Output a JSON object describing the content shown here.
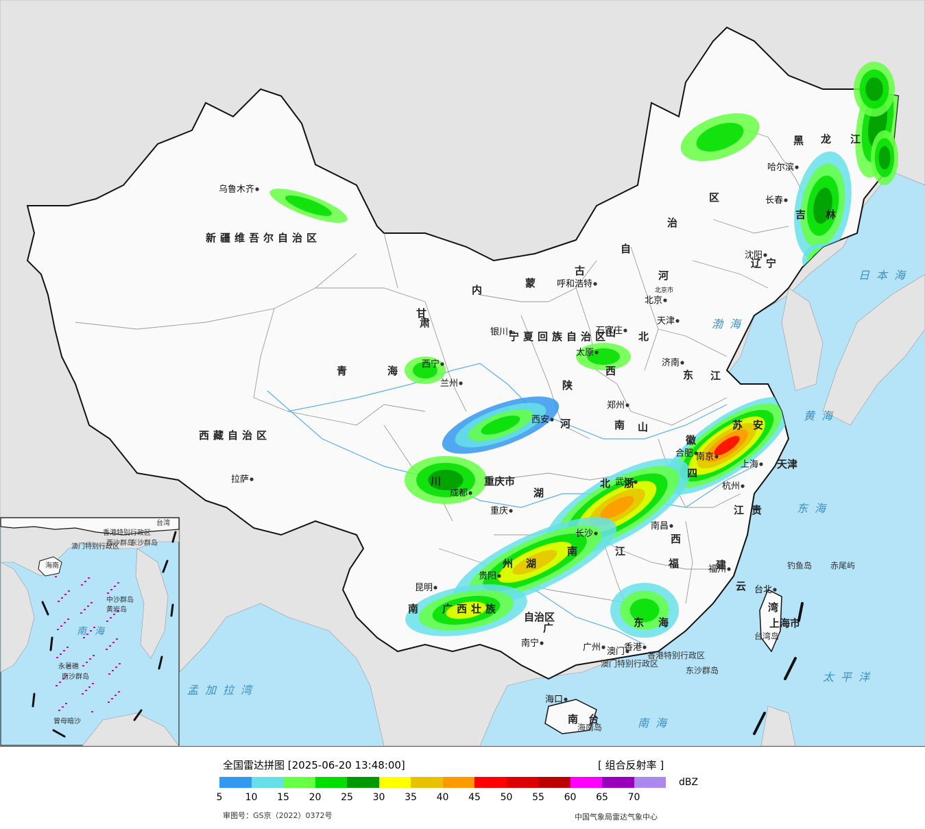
{
  "map": {
    "colors": {
      "sea": "#b5e3f8",
      "foreign_land": "#e4e4e4",
      "china_land": "#fafafa",
      "border": "#111111",
      "province_line": "#9a9a9a",
      "river": "#5aaef0"
    },
    "provinces": [
      {
        "name": "新疆维吾尔自治区"
      },
      {
        "name": "西藏自治区"
      },
      {
        "name": "青"
      },
      {
        "name": "海"
      },
      {
        "name": "甘"
      },
      {
        "name": "肃"
      },
      {
        "name": "宁夏回族自治区"
      },
      {
        "name": "内"
      },
      {
        "name": "蒙"
      },
      {
        "name": "古"
      },
      {
        "name": "自"
      },
      {
        "name": "治"
      },
      {
        "name": "区"
      },
      {
        "name": "黑"
      },
      {
        "name": "龙"
      },
      {
        "name": "江"
      },
      {
        "name": "吉"
      },
      {
        "name": "林"
      },
      {
        "name": "辽"
      },
      {
        "name": "宁"
      },
      {
        "name": "河"
      },
      {
        "name": "北"
      },
      {
        "name": "山"
      },
      {
        "name": "西"
      },
      {
        "name": "陕"
      },
      {
        "name": "河"
      },
      {
        "name": "南"
      },
      {
        "name": "山"
      },
      {
        "name": "东"
      },
      {
        "name": "江"
      },
      {
        "name": "苏"
      },
      {
        "name": "安"
      },
      {
        "name": "徽"
      },
      {
        "name": "四"
      },
      {
        "name": "川"
      },
      {
        "name": "重庆市"
      },
      {
        "name": "湖"
      },
      {
        "name": "北"
      },
      {
        "name": "浙"
      },
      {
        "name": "江"
      },
      {
        "name": "贵"
      },
      {
        "name": "州"
      },
      {
        "name": "湖"
      },
      {
        "name": "南"
      },
      {
        "name": "江"
      },
      {
        "name": "西"
      },
      {
        "name": "福"
      },
      {
        "name": "建"
      },
      {
        "name": "云"
      },
      {
        "name": "南"
      },
      {
        "name": "广西壮族"
      },
      {
        "name": "自治区"
      },
      {
        "name": "广"
      },
      {
        "name": "东"
      },
      {
        "name": "海"
      },
      {
        "name": "南"
      },
      {
        "name": "台"
      },
      {
        "name": "湾"
      },
      {
        "name": "上海市"
      },
      {
        "name": "天津"
      }
    ],
    "cities": [
      {
        "name": "乌鲁木齐"
      },
      {
        "name": "拉萨"
      },
      {
        "name": "西宁"
      },
      {
        "name": "兰州"
      },
      {
        "name": "银川"
      },
      {
        "name": "呼和浩特"
      },
      {
        "name": "北京"
      },
      {
        "name": "天津"
      },
      {
        "name": "石家庄"
      },
      {
        "name": "太原"
      },
      {
        "name": "济南"
      },
      {
        "name": "郑州"
      },
      {
        "name": "西安"
      },
      {
        "name": "成都"
      },
      {
        "name": "重庆"
      },
      {
        "name": "武汉"
      },
      {
        "name": "合肥"
      },
      {
        "name": "南京"
      },
      {
        "name": "上海"
      },
      {
        "name": "杭州"
      },
      {
        "name": "南昌"
      },
      {
        "name": "长沙"
      },
      {
        "name": "福州"
      },
      {
        "name": "台北"
      },
      {
        "name": "贵阳"
      },
      {
        "name": "昆明"
      },
      {
        "name": "南宁"
      },
      {
        "name": "广州"
      },
      {
        "name": "香港"
      },
      {
        "name": "澳门"
      },
      {
        "name": "海口"
      },
      {
        "name": "哈尔滨"
      },
      {
        "name": "长春"
      },
      {
        "name": "沈阳"
      }
    ],
    "sea_labels": [
      {
        "name": "日本海"
      },
      {
        "name": "黄海"
      },
      {
        "name": "渤海"
      },
      {
        "name": "东海"
      },
      {
        "name": "南海"
      },
      {
        "name": "太平洋"
      },
      {
        "name": "孟加拉湾"
      }
    ],
    "islands": [
      {
        "name": "钓鱼岛"
      },
      {
        "name": "赤尾屿"
      },
      {
        "name": "东沙群岛"
      },
      {
        "name": "台湾岛"
      },
      {
        "name": "海南岛"
      },
      {
        "name": "香港特别行政区"
      },
      {
        "name": "澳门特别行政区"
      }
    ],
    "beijing_badge": "北京市",
    "inset_labels": [
      {
        "name": "南海"
      },
      {
        "name": "中沙群岛"
      },
      {
        "name": "黄岩岛"
      },
      {
        "name": "南沙群岛"
      },
      {
        "name": "永暑礁"
      },
      {
        "name": "曾母暗沙"
      },
      {
        "name": "西沙群岛"
      },
      {
        "name": "东沙群岛"
      },
      {
        "name": "台湾"
      },
      {
        "name": "海南"
      },
      {
        "name": "香港特别行政区"
      },
      {
        "name": "澳门特别行政区"
      }
    ]
  },
  "legend": {
    "title": "全国雷达拼图 [2025-06-20 13:48:00]",
    "product": "[ 组合反射率 ]",
    "unit": "dBZ",
    "colors": [
      "#3399ee",
      "#66e0e8",
      "#66ff44",
      "#00dd00",
      "#009900",
      "#ffff00",
      "#e6c200",
      "#ff9900",
      "#ff0000",
      "#dd0000",
      "#bb0000",
      "#ff00ff",
      "#9900bb",
      "#aa88ee"
    ],
    "ticks": [
      "5",
      "10",
      "15",
      "20",
      "25",
      "30",
      "35",
      "40",
      "45",
      "50",
      "55",
      "60",
      "65",
      "70"
    ],
    "approval": "审图号：GS京（2022）0372号",
    "source": "中国气象局雷达气象中心"
  }
}
